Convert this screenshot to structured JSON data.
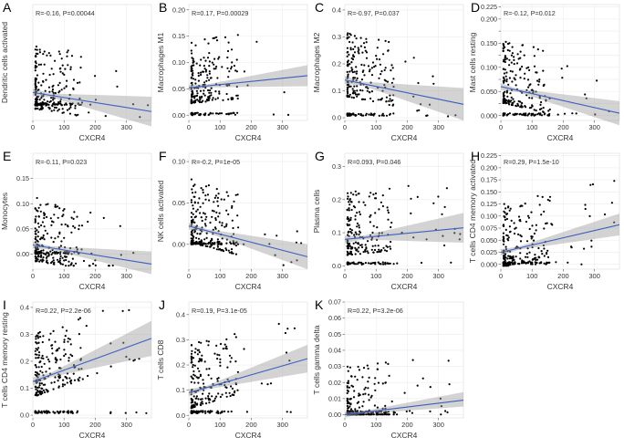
{
  "figure": {
    "xlabel_common": "CXCR4"
  },
  "chart_data": [
    {
      "letter": "A",
      "type": "scatter",
      "ylabel": "Dendritic cells activated",
      "xlabel": "CXCR4",
      "annotation": "R=-0.16, P=0.00044",
      "xlim": [
        0,
        380
      ],
      "ylim": [
        -0.025,
        0.17
      ],
      "xticks": [
        0,
        100,
        200,
        300
      ],
      "yticks": [],
      "ytick_labels": [],
      "fit": {
        "x": [
          0,
          380
        ],
        "y": [
          0.022,
          -0.01
        ]
      },
      "band": {
        "lo_end": -0.035,
        "hi_end": 0.015
      }
    },
    {
      "letter": "B",
      "type": "scatter",
      "ylabel": "Macrophages M1",
      "xlabel": "CXCR4",
      "annotation": "R=0.17, P=0.00029",
      "xlim": [
        0,
        380
      ],
      "ylim": [
        -0.01,
        0.21
      ],
      "xticks": [
        0,
        100,
        200,
        300
      ],
      "yticks": [
        0,
        0.05,
        0.1,
        0.15,
        0.2
      ],
      "ytick_labels": [
        "0.00",
        "0.05",
        "0.10",
        "0.15",
        "0.20"
      ],
      "fit": {
        "x": [
          0,
          380
        ],
        "y": [
          0.052,
          0.075
        ]
      },
      "band": {
        "lo_end": 0.055,
        "hi_end": 0.095
      }
    },
    {
      "letter": "C",
      "type": "scatter",
      "ylabel": "Macrophages M2",
      "xlabel": "CXCR4",
      "annotation": "R=-0.97, P=0.037",
      "xlim": [
        0,
        380
      ],
      "ylim": [
        -0.01,
        0.42
      ],
      "xticks": [
        0,
        100,
        200,
        300
      ],
      "yticks": [
        0,
        0.1,
        0.2,
        0.3,
        0.4
      ],
      "ytick_labels": [
        "0.0",
        "0.1",
        "0.2",
        "0.3",
        "0.4"
      ],
      "fit": {
        "x": [
          0,
          380
        ],
        "y": [
          0.14,
          0.05
        ]
      },
      "band": {
        "lo_end": -0.01,
        "hi_end": 0.11
      }
    },
    {
      "letter": "D",
      "type": "scatter",
      "ylabel": "Mast cells resting",
      "xlabel": "CXCR4",
      "annotation": "R=-0.12, P=0.012",
      "xlim": [
        0,
        380
      ],
      "ylim": [
        -0.01,
        0.23
      ],
      "xticks": [
        0,
        100,
        200,
        300
      ],
      "yticks": [
        0,
        0.025,
        0.05,
        0.075,
        0.1,
        0.125,
        0.15,
        0.175,
        0.2,
        0.225
      ],
      "ytick_labels": [
        "0.000",
        "",
        "0.050",
        "",
        "0.100",
        "",
        "0.150",
        "",
        "0.200",
        "0.225"
      ],
      "fit": {
        "x": [
          0,
          380
        ],
        "y": [
          0.06,
          0.005
        ]
      },
      "band": {
        "lo_end": -0.02,
        "hi_end": 0.03
      }
    },
    {
      "letter": "E",
      "type": "scatter",
      "ylabel": "Monocytes",
      "xlabel": "CXCR4",
      "annotation": "R=-0.11, P=0.023",
      "xlim": [
        0,
        380
      ],
      "ylim": [
        -0.03,
        0.2
      ],
      "xticks": [
        0,
        100,
        200,
        300
      ],
      "yticks": [
        0,
        0.05,
        0.1,
        0.15
      ],
      "ytick_labels": [
        "0.00",
        "0.05",
        "0.10",
        "0.15"
      ],
      "fit": {
        "x": [
          0,
          380
        ],
        "y": [
          0.018,
          -0.02
        ]
      },
      "band": {
        "lo_end": -0.04,
        "hi_end": 0.005
      }
    },
    {
      "letter": "F",
      "type": "scatter",
      "ylabel": "NK cells activated",
      "xlabel": "CXCR4",
      "annotation": "R=-0.2, P=1e-05",
      "xlim": [
        0,
        380
      ],
      "ylim": [
        -0.03,
        0.11
      ],
      "xticks": [
        0,
        100,
        200,
        300
      ],
      "yticks": [
        0,
        0.05,
        0.1
      ],
      "ytick_labels": [
        "0.00",
        "0.05",
        "0.10"
      ],
      "fit": {
        "x": [
          0,
          380
        ],
        "y": [
          0.022,
          -0.015
        ]
      },
      "band": {
        "lo_end": -0.03,
        "hi_end": 0.0
      }
    },
    {
      "letter": "G",
      "type": "scatter",
      "ylabel": "Plasma cells",
      "xlabel": "CXCR4",
      "annotation": "R=0.093, P=0.046",
      "xlim": [
        0,
        380
      ],
      "ylim": [
        -0.01,
        0.34
      ],
      "xticks": [
        0,
        100,
        200,
        300
      ],
      "yticks": [
        0,
        0.1,
        0.2,
        0.3
      ],
      "ytick_labels": [
        "0.0",
        "0.1",
        "0.2",
        "0.3"
      ],
      "fit": {
        "x": [
          0,
          380
        ],
        "y": [
          0.08,
          0.115
        ]
      },
      "band": {
        "lo_end": 0.07,
        "hi_end": 0.16
      }
    },
    {
      "letter": "H",
      "type": "scatter",
      "ylabel": "T cells CD4 memory activated",
      "xlabel": "CXCR4",
      "annotation": "R=0.29, P=1.5e-10",
      "xlim": [
        0,
        380
      ],
      "ylim": [
        -0.01,
        0.23
      ],
      "xticks": [
        0,
        100,
        200,
        300
      ],
      "yticks": [
        0,
        0.025,
        0.05,
        0.075,
        0.1,
        0.125,
        0.15,
        0.175,
        0.2,
        0.225
      ],
      "ytick_labels": [
        "0.000",
        "0.025",
        "0.050",
        "0.075",
        "0.100",
        "0.125",
        "0.150",
        "0.175",
        "0.200",
        "0.225"
      ],
      "fit": {
        "x": [
          0,
          380
        ],
        "y": [
          0.025,
          0.082
        ]
      },
      "band": {
        "lo_end": 0.06,
        "hi_end": 0.105
      }
    },
    {
      "letter": "I",
      "type": "scatter",
      "ylabel": "T cells CD4 memory resting",
      "xlabel": "CXCR4",
      "annotation": "R=0.22, P=2.2e-06",
      "xlim": [
        0,
        380
      ],
      "ylim": [
        -0.01,
        0.42
      ],
      "xticks": [
        0,
        100,
        200,
        300
      ],
      "yticks": [
        0,
        0.1,
        0.2,
        0.3,
        0.4
      ],
      "ytick_labels": [
        "0.0",
        "0.1",
        "0.2",
        "0.3",
        "0.4"
      ],
      "fit": {
        "x": [
          0,
          380
        ],
        "y": [
          0.125,
          0.285
        ]
      },
      "band": {
        "lo_end": 0.22,
        "hi_end": 0.35
      }
    },
    {
      "letter": "J",
      "type": "scatter",
      "ylabel": "T cells CD8",
      "xlabel": "CXCR4",
      "annotation": "R=0.19, P=3.1e-05",
      "xlim": [
        0,
        380
      ],
      "ylim": [
        -0.01,
        0.45
      ],
      "xticks": [
        0,
        100,
        200,
        300
      ],
      "yticks": [
        0,
        0.1,
        0.2,
        0.3,
        0.4
      ],
      "ytick_labels": [
        "0.0",
        "0.1",
        "0.2",
        "0.3",
        "0.4"
      ],
      "fit": {
        "x": [
          0,
          380
        ],
        "y": [
          0.09,
          0.225
        ]
      },
      "band": {
        "lo_end": 0.17,
        "hi_end": 0.28
      }
    },
    {
      "letter": "K",
      "type": "scatter",
      "ylabel": "T cells gamma delta",
      "xlabel": "CXCR4",
      "annotation": "R=0.22, P=3.2e-06",
      "xlim": [
        0,
        380
      ],
      "ylim": [
        -0.002,
        0.07
      ],
      "xticks": [
        0,
        100,
        200,
        300
      ],
      "yticks": [
        0,
        0.01,
        0.02,
        0.03,
        0.04,
        0.05,
        0.06,
        0.07
      ],
      "ytick_labels": [
        "0.00",
        "0.01",
        "0.02",
        "0.03",
        "0.04",
        "0.05",
        "0.06",
        "0.07"
      ],
      "fit": {
        "x": [
          0,
          380
        ],
        "y": [
          0.0,
          0.009
        ]
      },
      "band": {
        "lo_end": 0.005,
        "hi_end": 0.014
      }
    }
  ]
}
